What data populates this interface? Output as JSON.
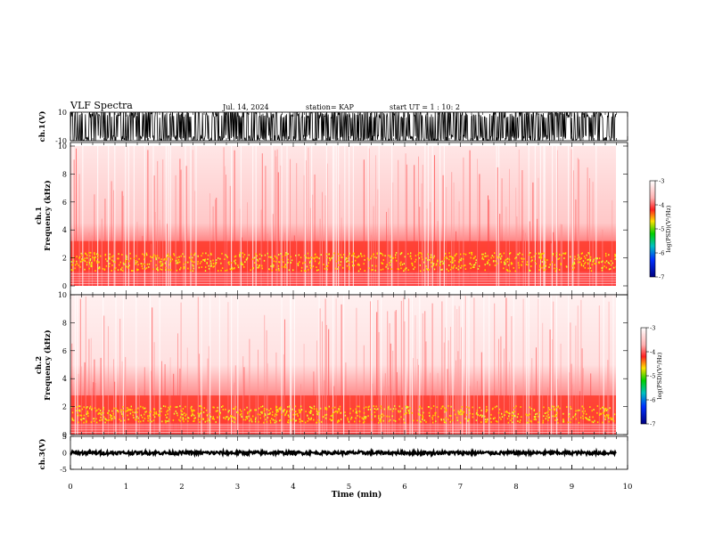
{
  "header": {
    "title": "VLF Spectra",
    "date": "Jul. 14, 2024",
    "station": "station= KAP",
    "start_ut": "start UT =  1 : 10: 2"
  },
  "chart_data": [
    {
      "type": "line",
      "panel": "ch1-waveform",
      "ylabel": "ch.1(V)",
      "ylim": [
        -10,
        10
      ],
      "yticks": [
        "10",
        "-10"
      ],
      "xlim": [
        0,
        9.8
      ],
      "description_style": "dense black oscillating trace saturating between about -10 and 10 V",
      "color": "#000000"
    },
    {
      "type": "heatmap",
      "panel": "ch1-spectrogram",
      "ylabel": "ch.1\nFrequency (kHz)",
      "ylabel_line1": "ch.1",
      "ylabel_line2": "Frequency (kHz)",
      "ylim": [
        0,
        10
      ],
      "yticks": [
        "0",
        "2",
        "4",
        "6",
        "8",
        "10"
      ],
      "xlim": [
        0,
        9.8
      ],
      "band_kHz": [
        1.0,
        3.2
      ],
      "colorbar": {
        "label": "log(PSD)(V²/Hz)",
        "range": [
          -7,
          -3
        ],
        "ticks": [
          "-3",
          "-4",
          "-5",
          "-6",
          "-7"
        ]
      }
    },
    {
      "type": "heatmap",
      "panel": "ch2-spectrogram",
      "ylabel_line1": "ch.2",
      "ylabel_line2": "Frequency (kHz)",
      "ylim": [
        0,
        10
      ],
      "yticks": [
        "0",
        "2",
        "4",
        "6",
        "8",
        "10"
      ],
      "xlim": [
        0,
        9.8
      ],
      "band_kHz": [
        0.8,
        2.8
      ],
      "colorbar": {
        "label": "log(PSD)(V²/Hz)",
        "range": [
          -7,
          -3
        ],
        "ticks": [
          "-3",
          "-4",
          "-5",
          "-6",
          "-7"
        ]
      }
    },
    {
      "type": "line",
      "panel": "ch3-waveform",
      "ylabel": "ch.3(V)",
      "ylim": [
        -5,
        5
      ],
      "yticks": [
        "5",
        "0",
        "-5"
      ],
      "xlim": [
        0,
        9.8
      ],
      "baseline": 0,
      "color": "#000000"
    }
  ],
  "x_axis": {
    "label": "Time (min)",
    "range": [
      0,
      10
    ],
    "ticks": [
      "0",
      "1",
      "2",
      "3",
      "4",
      "5",
      "6",
      "7",
      "8",
      "9",
      "10"
    ]
  },
  "colors": {
    "low": "#ffffff",
    "mid": "#ff3030",
    "high": "#ffe000",
    "trace": "#000000"
  }
}
